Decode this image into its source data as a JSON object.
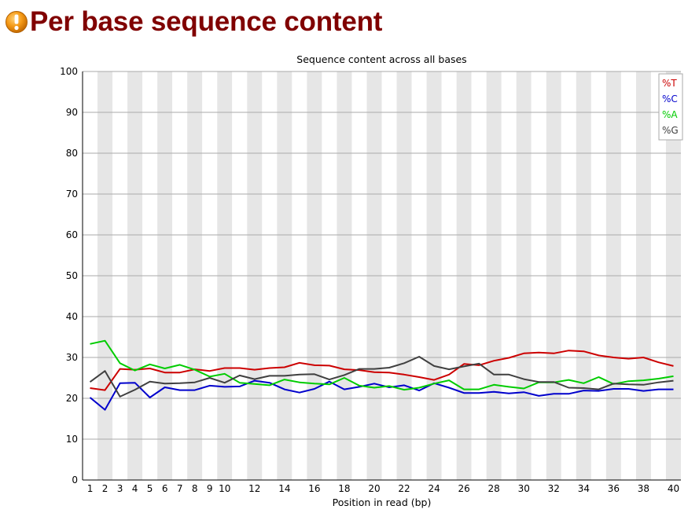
{
  "page": {
    "title": "Per base sequence content",
    "status_icon": "warning-icon"
  },
  "chart_data": {
    "type": "line",
    "title": "Sequence content across all bases",
    "xlabel": "Position in read (bp)",
    "ylabel": "",
    "ylim": [
      0,
      100
    ],
    "yticks": [
      0,
      10,
      20,
      30,
      40,
      50,
      60,
      70,
      80,
      90,
      100
    ],
    "x": [
      1,
      2,
      3,
      4,
      5,
      6,
      7,
      8,
      9,
      10,
      11,
      12,
      13,
      14,
      15,
      16,
      17,
      18,
      19,
      20,
      21,
      22,
      23,
      24,
      25,
      26,
      27,
      28,
      29,
      30,
      31,
      32,
      33,
      34,
      35,
      36,
      37,
      38,
      39,
      40
    ],
    "x_tick_labels": [
      "1",
      "2",
      "3",
      "4",
      "5",
      "6",
      "7",
      "8",
      "9",
      "10",
      "",
      "12",
      "",
      "14",
      "",
      "16",
      "",
      "18",
      "",
      "20",
      "",
      "22",
      "",
      "24",
      "",
      "26",
      "",
      "28",
      "",
      "30",
      "",
      "32",
      "",
      "34",
      "",
      "36",
      "",
      "38",
      "",
      "40"
    ],
    "grid": true,
    "legend_position": "top-right",
    "series": [
      {
        "name": "%T",
        "color": "#cc0000",
        "values": [
          22.5,
          22.0,
          27.2,
          27.0,
          27.3,
          26.3,
          26.3,
          27.1,
          26.7,
          27.4,
          27.4,
          27.0,
          27.4,
          27.6,
          28.7,
          28.1,
          28.0,
          27.1,
          26.9,
          26.4,
          26.3,
          25.8,
          25.2,
          24.5,
          25.8,
          28.4,
          28.1,
          29.2,
          29.9,
          31.0,
          31.2,
          31.0,
          31.7,
          31.5,
          30.5,
          30.0,
          29.7,
          30.0,
          28.8,
          27.9
        ]
      },
      {
        "name": "%C",
        "color": "#0000cc",
        "values": [
          20.2,
          17.2,
          23.7,
          23.8,
          20.2,
          22.7,
          22.0,
          22.0,
          23.1,
          22.8,
          22.9,
          24.3,
          23.8,
          22.2,
          21.4,
          22.3,
          24.1,
          22.2,
          22.8,
          23.6,
          22.7,
          23.2,
          21.9,
          23.7,
          22.6,
          21.3,
          21.3,
          21.6,
          21.2,
          21.5,
          20.6,
          21.1,
          21.1,
          21.9,
          21.8,
          22.3,
          22.3,
          21.8,
          22.2,
          22.2
        ]
      },
      {
        "name": "%A",
        "color": "#00cc00",
        "values": [
          33.3,
          34.1,
          28.6,
          26.8,
          28.3,
          27.3,
          28.2,
          27.0,
          25.3,
          26.0,
          23.8,
          23.5,
          23.2,
          24.6,
          23.9,
          23.6,
          23.4,
          25.0,
          23.1,
          22.6,
          23.0,
          22.1,
          22.6,
          23.6,
          24.4,
          22.2,
          22.2,
          23.3,
          22.8,
          22.4,
          23.9,
          23.9,
          24.5,
          23.7,
          25.2,
          23.5,
          24.2,
          24.4,
          24.8,
          25.4
        ]
      },
      {
        "name": "%G",
        "color": "#404040",
        "values": [
          24.0,
          26.7,
          20.4,
          22.1,
          24.1,
          23.6,
          23.7,
          23.9,
          25.0,
          23.8,
          25.6,
          24.7,
          25.5,
          25.5,
          25.8,
          25.9,
          24.6,
          25.7,
          27.2,
          27.2,
          27.5,
          28.6,
          30.2,
          27.9,
          27.1,
          27.8,
          28.5,
          25.8,
          25.8,
          24.7,
          24.0,
          24.0,
          22.6,
          22.5,
          22.2,
          23.6,
          23.4,
          23.3,
          23.9,
          24.3
        ]
      }
    ]
  }
}
